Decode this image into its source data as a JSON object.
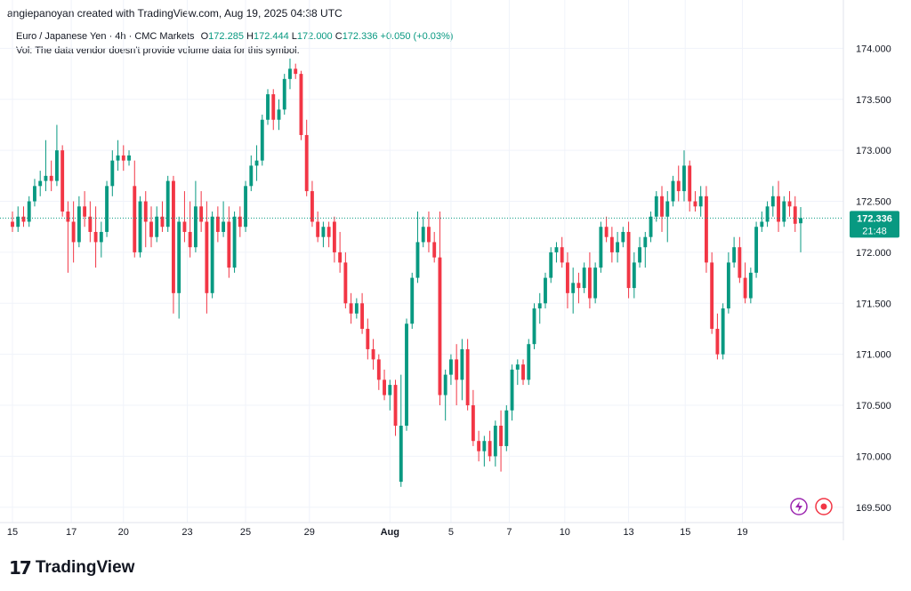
{
  "header": {
    "credit": "angiepanoyan created with TradingView.com, Aug 19, 2025 04:38 UTC"
  },
  "legend": {
    "symbol": "Euro / Japanese Yen · 4h · CMC Markets",
    "open_label": "O",
    "open": "172.285",
    "high_label": "H",
    "high": "172.444",
    "low_label": "L",
    "low": "172.000",
    "close_label": "C",
    "close": "172.336",
    "change": "+0.050 (+0.03%)",
    "volume_note": "Vol: The data vendor doesn't provide volume data for this symbol."
  },
  "price_badge": {
    "price": "172.336",
    "countdown": "21:48"
  },
  "logo": {
    "mark": "17",
    "text": "TradingView"
  },
  "colors": {
    "up": "#089981",
    "down": "#f23645",
    "grid": "#f0f3fa",
    "last_line": "#089981"
  },
  "icons": [
    "lightning-icon",
    "record-icon"
  ],
  "chart_data": {
    "type": "candlestick",
    "ylim": [
      169.35,
      174.3
    ],
    "y_ticks": [
      "174.000",
      "173.500",
      "173.000",
      "172.500",
      "172.000",
      "171.500",
      "171.000",
      "170.500",
      "170.000",
      "169.500"
    ],
    "x_ticks": [
      {
        "label": "15",
        "x": 0
      },
      {
        "label": "17",
        "x": 10.6
      },
      {
        "label": "20",
        "x": 20
      },
      {
        "label": "23",
        "x": 31.5
      },
      {
        "label": "25",
        "x": 42
      },
      {
        "label": "29",
        "x": 53.5
      },
      {
        "label": "Aug",
        "x": 68
      },
      {
        "label": "5",
        "x": 79
      },
      {
        "label": "7",
        "x": 89.5
      },
      {
        "label": "10",
        "x": 99.5
      },
      {
        "label": "13",
        "x": 111
      },
      {
        "label": "15",
        "x": 121.2
      },
      {
        "label": "19",
        "x": 131.5
      }
    ],
    "last_price": 172.336,
    "candles": [
      [
        172.3,
        172.4,
        172.2,
        172.25
      ],
      [
        172.25,
        172.45,
        172.2,
        172.35
      ],
      [
        172.35,
        172.45,
        172.25,
        172.3
      ],
      [
        172.3,
        172.55,
        172.25,
        172.5
      ],
      [
        172.5,
        172.72,
        172.45,
        172.65
      ],
      [
        172.65,
        172.8,
        172.55,
        172.7
      ],
      [
        172.7,
        173.1,
        172.6,
        172.75
      ],
      [
        172.75,
        172.9,
        172.6,
        172.7
      ],
      [
        172.7,
        173.25,
        172.65,
        173.0
      ],
      [
        173.0,
        173.05,
        172.35,
        172.4
      ],
      [
        172.4,
        172.5,
        171.8,
        172.3
      ],
      [
        172.3,
        172.5,
        171.9,
        172.1
      ],
      [
        172.1,
        172.55,
        172.05,
        172.45
      ],
      [
        172.45,
        172.6,
        172.25,
        172.35
      ],
      [
        172.35,
        172.5,
        172.1,
        172.2
      ],
      [
        172.2,
        172.45,
        171.85,
        172.1
      ],
      [
        172.1,
        172.3,
        171.95,
        172.2
      ],
      [
        172.2,
        172.7,
        172.15,
        172.65
      ],
      [
        172.65,
        173.0,
        172.55,
        172.9
      ],
      [
        172.9,
        173.1,
        172.8,
        172.95
      ],
      [
        172.95,
        173.05,
        172.8,
        172.9
      ],
      [
        172.9,
        173.0,
        172.85,
        172.95
      ],
      [
        172.65,
        172.9,
        171.95,
        172.0
      ],
      [
        172.0,
        172.55,
        171.95,
        172.5
      ],
      [
        172.5,
        172.6,
        172.05,
        172.3
      ],
      [
        172.3,
        172.45,
        172.05,
        172.15
      ],
      [
        172.15,
        172.45,
        172.1,
        172.35
      ],
      [
        172.35,
        172.5,
        172.2,
        172.25
      ],
      [
        172.25,
        172.75,
        172.2,
        172.7
      ],
      [
        172.7,
        172.75,
        171.4,
        171.6
      ],
      [
        171.6,
        172.35,
        171.35,
        172.3
      ],
      [
        172.3,
        172.6,
        172.1,
        172.2
      ],
      [
        172.2,
        172.5,
        171.95,
        172.05
      ],
      [
        172.05,
        172.7,
        172.0,
        172.45
      ],
      [
        172.45,
        172.6,
        172.2,
        172.3
      ],
      [
        172.3,
        172.5,
        171.4,
        171.6
      ],
      [
        171.6,
        172.4,
        171.55,
        172.35
      ],
      [
        172.35,
        172.45,
        172.1,
        172.2
      ],
      [
        172.2,
        172.5,
        172.15,
        172.3
      ],
      [
        172.3,
        172.45,
        171.75,
        171.85
      ],
      [
        171.85,
        172.4,
        171.8,
        172.35
      ],
      [
        172.35,
        172.45,
        172.15,
        172.25
      ],
      [
        172.25,
        172.7,
        172.2,
        172.65
      ],
      [
        172.65,
        172.95,
        172.6,
        172.85
      ],
      [
        172.85,
        173.05,
        172.7,
        172.9
      ],
      [
        172.9,
        173.35,
        172.85,
        173.3
      ],
      [
        173.3,
        173.6,
        173.25,
        173.55
      ],
      [
        173.55,
        173.6,
        173.2,
        173.3
      ],
      [
        173.3,
        173.5,
        173.2,
        173.4
      ],
      [
        173.4,
        173.75,
        173.35,
        173.7
      ],
      [
        173.7,
        173.9,
        173.6,
        173.8
      ],
      [
        173.8,
        173.85,
        173.7,
        173.75
      ],
      [
        173.75,
        173.78,
        173.1,
        173.15
      ],
      [
        173.15,
        173.3,
        172.55,
        172.6
      ],
      [
        172.6,
        172.7,
        172.25,
        172.3
      ],
      [
        172.3,
        172.4,
        172.1,
        172.15
      ],
      [
        172.15,
        172.3,
        172.05,
        172.25
      ],
      [
        172.25,
        172.3,
        172.05,
        172.15
      ],
      [
        172.3,
        172.35,
        171.9,
        172.0
      ],
      [
        172.0,
        172.2,
        171.8,
        171.9
      ],
      [
        171.9,
        172.0,
        171.45,
        171.5
      ],
      [
        171.5,
        171.6,
        171.3,
        171.4
      ],
      [
        171.4,
        171.55,
        171.35,
        171.5
      ],
      [
        171.5,
        171.6,
        171.2,
        171.25
      ],
      [
        171.25,
        171.35,
        170.95,
        171.05
      ],
      [
        171.05,
        171.15,
        170.85,
        170.95
      ],
      [
        170.95,
        171.0,
        170.65,
        170.75
      ],
      [
        170.75,
        170.85,
        170.55,
        170.6
      ],
      [
        170.6,
        170.75,
        170.45,
        170.7
      ],
      [
        170.7,
        170.75,
        170.2,
        170.3
      ],
      [
        169.75,
        170.8,
        169.7,
        170.3
      ],
      [
        170.3,
        171.35,
        170.25,
        171.3
      ],
      [
        171.3,
        171.8,
        171.25,
        171.75
      ],
      [
        171.75,
        172.4,
        171.7,
        172.1
      ],
      [
        172.1,
        172.35,
        172.05,
        172.25
      ],
      [
        172.25,
        172.4,
        172.0,
        172.1
      ],
      [
        172.1,
        172.2,
        171.9,
        171.95
      ],
      [
        171.95,
        172.4,
        170.5,
        170.6
      ],
      [
        170.6,
        170.85,
        170.35,
        170.8
      ],
      [
        170.8,
        171.0,
        170.7,
        170.95
      ],
      [
        170.95,
        171.1,
        170.5,
        170.75
      ],
      [
        170.75,
        171.15,
        170.55,
        171.05
      ],
      [
        171.05,
        171.15,
        170.45,
        170.5
      ],
      [
        170.5,
        170.65,
        170.1,
        170.15
      ],
      [
        170.15,
        170.25,
        169.95,
        170.05
      ],
      [
        170.05,
        170.2,
        169.9,
        170.15
      ],
      [
        170.15,
        170.25,
        169.95,
        170.0
      ],
      [
        170.0,
        170.35,
        169.9,
        170.3
      ],
      [
        170.3,
        170.45,
        169.85,
        170.1
      ],
      [
        170.1,
        170.5,
        170.05,
        170.45
      ],
      [
        170.45,
        170.9,
        170.35,
        170.85
      ],
      [
        170.85,
        170.95,
        170.7,
        170.9
      ],
      [
        170.9,
        170.95,
        170.7,
        170.75
      ],
      [
        170.75,
        171.15,
        170.7,
        171.1
      ],
      [
        171.1,
        171.5,
        171.05,
        171.45
      ],
      [
        171.45,
        171.6,
        171.3,
        171.5
      ],
      [
        171.5,
        171.8,
        171.45,
        171.75
      ],
      [
        171.75,
        172.05,
        171.7,
        172.0
      ],
      [
        172.0,
        172.1,
        171.9,
        172.05
      ],
      [
        172.05,
        172.15,
        171.85,
        171.9
      ],
      [
        171.9,
        172.0,
        171.45,
        171.6
      ],
      [
        171.6,
        171.85,
        171.4,
        171.7
      ],
      [
        171.7,
        171.8,
        171.5,
        171.65
      ],
      [
        171.65,
        171.9,
        171.6,
        171.85
      ],
      [
        171.85,
        172.0,
        171.45,
        171.55
      ],
      [
        171.55,
        171.9,
        171.5,
        171.85
      ],
      [
        171.85,
        172.3,
        171.8,
        172.25
      ],
      [
        172.25,
        172.35,
        172.1,
        172.15
      ],
      [
        172.15,
        172.25,
        171.9,
        172.0
      ],
      [
        172.0,
        172.2,
        171.9,
        172.1
      ],
      [
        172.1,
        172.25,
        172.05,
        172.2
      ],
      [
        172.2,
        172.3,
        171.55,
        171.65
      ],
      [
        171.65,
        172.0,
        171.55,
        171.9
      ],
      [
        171.9,
        172.15,
        171.85,
        172.05
      ],
      [
        172.05,
        172.2,
        171.85,
        172.15
      ],
      [
        172.15,
        172.4,
        172.1,
        172.35
      ],
      [
        172.35,
        172.6,
        172.3,
        172.55
      ],
      [
        172.55,
        172.65,
        172.2,
        172.35
      ],
      [
        172.35,
        172.6,
        172.1,
        172.5
      ],
      [
        172.5,
        172.75,
        172.45,
        172.7
      ],
      [
        172.7,
        172.85,
        172.5,
        172.6
      ],
      [
        172.6,
        173.0,
        172.5,
        172.85
      ],
      [
        172.85,
        172.9,
        172.4,
        172.5
      ],
      [
        172.5,
        172.6,
        172.4,
        172.45
      ],
      [
        172.45,
        172.65,
        172.35,
        172.55
      ],
      [
        172.55,
        172.65,
        171.8,
        171.9
      ],
      [
        171.9,
        172.0,
        171.2,
        171.25
      ],
      [
        171.25,
        171.4,
        170.95,
        171.0
      ],
      [
        171.0,
        171.5,
        170.95,
        171.45
      ],
      [
        171.45,
        172.0,
        171.4,
        171.9
      ],
      [
        171.9,
        172.15,
        171.85,
        172.05
      ],
      [
        172.05,
        172.15,
        171.7,
        171.75
      ],
      [
        171.75,
        171.9,
        171.5,
        171.55
      ],
      [
        171.55,
        171.85,
        171.5,
        171.8
      ],
      [
        171.8,
        172.3,
        171.75,
        172.25
      ],
      [
        172.25,
        172.4,
        172.2,
        172.3
      ],
      [
        172.3,
        172.5,
        172.25,
        172.45
      ],
      [
        172.45,
        172.65,
        172.35,
        172.55
      ],
      [
        172.55,
        172.7,
        172.2,
        172.3
      ],
      [
        172.3,
        172.55,
        172.25,
        172.5
      ],
      [
        172.5,
        172.6,
        172.35,
        172.45
      ],
      [
        172.45,
        172.55,
        172.2,
        172.28
      ],
      [
        172.285,
        172.444,
        172.0,
        172.336
      ]
    ]
  }
}
